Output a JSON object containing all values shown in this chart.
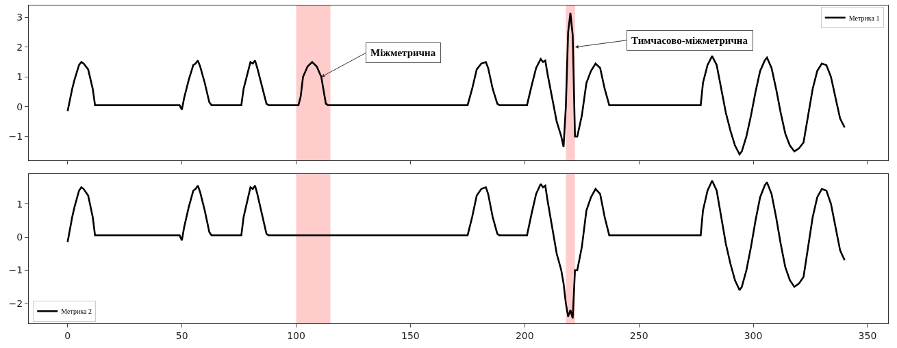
{
  "chart_data": [
    {
      "type": "line",
      "xlim": [
        -17,
        359
      ],
      "xticks": [
        0,
        50,
        100,
        150,
        200,
        250,
        300,
        350
      ],
      "ylim": [
        -1.8,
        3.4
      ],
      "yticks": [
        -1,
        0,
        1,
        2,
        3
      ],
      "tick_labels": "y",
      "legend": "top right",
      "grid": false,
      "series": [
        {
          "name": "Метрика 1",
          "color": "#000000",
          "x": [
            0,
            2,
            3,
            5,
            6,
            7,
            9,
            11,
            12,
            49,
            50,
            51,
            53,
            55,
            56,
            57,
            58,
            60,
            62,
            63,
            76,
            77,
            79,
            80,
            81,
            82,
            83,
            85,
            87,
            88,
            101,
            102,
            103,
            105,
            107,
            109,
            111,
            113,
            114,
            175,
            177,
            179,
            181,
            183,
            184,
            186,
            188,
            189,
            201,
            203,
            205,
            207,
            208,
            209,
            210,
            212,
            214,
            216,
            217,
            218,
            219,
            220,
            221,
            222,
            223,
            225,
            227,
            229,
            231,
            233,
            235,
            237,
            277,
            278,
            280,
            282,
            284,
            286,
            288,
            290,
            292,
            294,
            295,
            297,
            299,
            301,
            303,
            305,
            306,
            308,
            310,
            312,
            314,
            316,
            318,
            320,
            322,
            324,
            326,
            328,
            330,
            332,
            334,
            336,
            338,
            340
          ],
          "values": [
            -0.15,
            0.6,
            0.9,
            1.4,
            1.5,
            1.45,
            1.25,
            0.6,
            0.05,
            0.05,
            -0.1,
            0.3,
            0.9,
            1.4,
            1.45,
            1.55,
            1.35,
            0.8,
            0.15,
            0.05,
            0.05,
            0.6,
            1.2,
            1.5,
            1.45,
            1.55,
            1.3,
            0.7,
            0.1,
            0.05,
            0.05,
            0.35,
            1.0,
            1.35,
            1.5,
            1.35,
            1.0,
            0.1,
            0.05,
            0.05,
            0.6,
            1.25,
            1.45,
            1.5,
            1.3,
            0.6,
            0.1,
            0.05,
            0.05,
            0.7,
            1.3,
            1.6,
            1.5,
            1.55,
            1.1,
            0.3,
            -0.5,
            -1.0,
            -1.35,
            0.0,
            2.5,
            3.15,
            2.4,
            -1.0,
            -1.0,
            -0.3,
            0.8,
            1.2,
            1.45,
            1.3,
            0.6,
            0.05,
            0.05,
            0.8,
            1.4,
            1.7,
            1.4,
            0.6,
            -0.2,
            -0.8,
            -1.3,
            -1.6,
            -1.5,
            -1.0,
            -0.3,
            0.5,
            1.2,
            1.55,
            1.65,
            1.3,
            0.6,
            -0.2,
            -0.9,
            -1.3,
            -1.5,
            -1.4,
            -1.2,
            -0.3,
            0.6,
            1.2,
            1.45,
            1.4,
            1.0,
            0.3,
            -0.4,
            -0.7
          ]
        }
      ],
      "bands": [
        {
          "axis": "x",
          "from": 100,
          "to": 115,
          "color": "#ffcccc"
        },
        {
          "axis": "x",
          "from": 218,
          "to": 222,
          "color": "#ffcccc"
        }
      ],
      "annotations": [
        {
          "text": "Міжметрична",
          "x": 111,
          "y": 1.0
        },
        {
          "text": "Тимчасово-міжметрична",
          "x": 222,
          "y": 2.0
        }
      ]
    },
    {
      "type": "line",
      "xlim": [
        -17,
        359
      ],
      "xticks": [
        0,
        50,
        100,
        150,
        200,
        250,
        300,
        350
      ],
      "ylim": [
        -2.6,
        1.9
      ],
      "yticks": [
        -2,
        -1,
        0,
        1
      ],
      "legend": "bottom left",
      "grid": false,
      "series": [
        {
          "name": "Метрика 2",
          "color": "#000000",
          "x": [
            0,
            2,
            3,
            5,
            6,
            7,
            9,
            11,
            12,
            49,
            50,
            51,
            53,
            55,
            56,
            57,
            58,
            60,
            62,
            63,
            76,
            77,
            79,
            80,
            81,
            82,
            83,
            85,
            87,
            88,
            175,
            177,
            179,
            181,
            183,
            184,
            186,
            188,
            189,
            201,
            203,
            205,
            207,
            208,
            209,
            210,
            212,
            214,
            216,
            217,
            218,
            219,
            220,
            221,
            222,
            223,
            225,
            227,
            229,
            231,
            233,
            235,
            237,
            277,
            278,
            280,
            282,
            284,
            286,
            288,
            290,
            292,
            294,
            295,
            297,
            299,
            301,
            303,
            305,
            306,
            308,
            310,
            312,
            314,
            316,
            318,
            320,
            322,
            324,
            326,
            328,
            330,
            332,
            334,
            336,
            338,
            340
          ],
          "values": [
            -0.15,
            0.6,
            0.9,
            1.4,
            1.5,
            1.45,
            1.25,
            0.6,
            0.05,
            0.05,
            -0.1,
            0.3,
            0.9,
            1.4,
            1.45,
            1.55,
            1.35,
            0.8,
            0.15,
            0.05,
            0.05,
            0.6,
            1.2,
            1.5,
            1.45,
            1.55,
            1.3,
            0.7,
            0.1,
            0.05,
            0.05,
            0.6,
            1.25,
            1.45,
            1.5,
            1.3,
            0.6,
            0.1,
            0.05,
            0.05,
            0.7,
            1.3,
            1.6,
            1.5,
            1.55,
            1.1,
            0.3,
            -0.5,
            -1.0,
            -1.4,
            -2.0,
            -2.4,
            -2.2,
            -2.45,
            -1.0,
            -1.0,
            -0.3,
            0.8,
            1.2,
            1.45,
            1.3,
            0.6,
            0.05,
            0.05,
            0.8,
            1.4,
            1.7,
            1.4,
            0.6,
            -0.2,
            -0.8,
            -1.3,
            -1.6,
            -1.5,
            -1.0,
            -0.3,
            0.5,
            1.2,
            1.55,
            1.65,
            1.3,
            0.6,
            -0.2,
            -0.9,
            -1.3,
            -1.5,
            -1.4,
            -1.2,
            -0.3,
            0.6,
            1.2,
            1.45,
            1.4,
            1.0,
            0.3,
            -0.4,
            -0.7
          ]
        }
      ],
      "bands": [
        {
          "axis": "x",
          "from": 100,
          "to": 115,
          "color": "#ffcccc"
        },
        {
          "axis": "x",
          "from": 218,
          "to": 222,
          "color": "#ffcccc"
        }
      ]
    }
  ]
}
